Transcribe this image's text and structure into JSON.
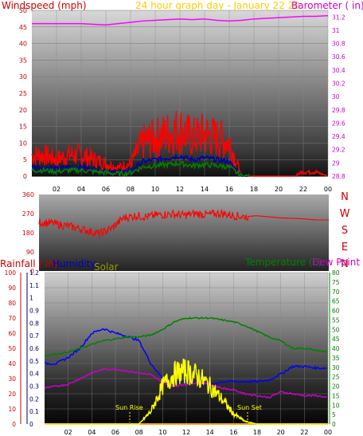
{
  "panel1": {
    "left_label": "Windspeed (mph)",
    "center_label": "24 hour graph day - January 22 20",
    "right_label": "Barometer ( in)",
    "left_ticks": [
      "0",
      "5",
      "10",
      "15",
      "20",
      "25",
      "30",
      "35",
      "40",
      "45",
      "50"
    ],
    "right_ticks": [
      "28.8",
      "29",
      "29.2",
      "29.4",
      "29.6",
      "29.8",
      "30",
      "30.2",
      "30.4",
      "30.6",
      "30.8",
      "31",
      "31.2"
    ],
    "colors": {
      "wind": "#ff0000",
      "gust2": "#0000aa",
      "gust3": "#008000",
      "barometer": "#ff00ff",
      "left_axis": "#cc0000",
      "right_axis": "#cc00cc",
      "title": "#ffcc00"
    }
  },
  "panel2": {
    "left_ticks": [
      "0",
      "90",
      "180",
      "270",
      "360"
    ],
    "compass": [
      "N",
      "W",
      "S",
      "E",
      "N"
    ],
    "colors": {
      "direction": "#ff0000",
      "compass": "#cc0000"
    }
  },
  "panel3": {
    "labels": {
      "rainfall": "Rainfall (.in)",
      "humidity": "Humidity",
      "solar": "Solar",
      "temperature": "Temperature (F)",
      "dew_point": "Dew Point ("
    },
    "rain_ticks": [
      "0",
      "10",
      "20",
      "30",
      "40",
      "50",
      "60",
      "70",
      "80",
      "90",
      "100"
    ],
    "inner_ticks": [
      "0",
      "0.1",
      "0.2",
      "0.3",
      "0.4",
      "0.5",
      "0.6",
      "0.7",
      "0.8",
      "0.9",
      "1",
      "1.1",
      "1.2"
    ],
    "temp_ticks": [
      "0",
      "5",
      "10",
      "15",
      "20",
      "25",
      "30",
      "35",
      "40",
      "45",
      "50",
      "55",
      "60",
      "65",
      "70",
      "75",
      "80"
    ],
    "sun_rise": "Sun Rise",
    "sun_set": "Sun Set",
    "colors": {
      "humidity": "#0000ff",
      "solar": "#ffff00",
      "temperature": "#008000",
      "dew_point": "#cc00cc",
      "rainfall": "#cc0000",
      "rain_axis": "#cc0000",
      "humidity_axis": "#0000cc",
      "temp_axis": "#008000",
      "solar_label": "#999900"
    }
  },
  "x_ticks": [
    "02",
    "04",
    "06",
    "08",
    "10",
    "12",
    "14",
    "16",
    "18",
    "20",
    "22",
    "00"
  ],
  "chart_data": [
    {
      "type": "line",
      "xlabel": "",
      "x_hours": [
        0,
        1,
        2,
        3,
        4,
        5,
        6,
        7,
        8,
        9,
        10,
        11,
        12,
        13,
        14,
        15,
        16,
        17,
        18,
        19,
        20,
        21,
        22,
        23,
        24
      ],
      "ylabel_left": "Windspeed (mph)",
      "ylabel_right": "Barometer ( in)",
      "ylim_left": [
        0,
        50
      ],
      "ylim_right": [
        28.8,
        31.3
      ],
      "series": [
        {
          "name": "Windspeed (mph)",
          "axis": "left",
          "values": [
            5,
            5,
            4,
            5,
            5,
            4,
            3,
            2,
            3,
            8,
            9,
            10,
            11,
            9,
            10,
            9,
            8,
            0,
            0,
            0,
            0,
            0,
            1,
            1,
            0
          ]
        },
        {
          "name": "Barometer ( in)",
          "axis": "right",
          "values": [
            31.1,
            31.1,
            31.1,
            31.1,
            31.1,
            31.09,
            31.08,
            31.1,
            31.12,
            31.14,
            31.15,
            31.16,
            31.17,
            31.16,
            31.17,
            31.15,
            31.14,
            31.15,
            31.17,
            31.18,
            31.19,
            31.2,
            31.21,
            31.21,
            31.22
          ]
        }
      ]
    },
    {
      "type": "line",
      "xlabel": "",
      "x_hours": [
        0,
        1,
        2,
        3,
        4,
        5,
        6,
        7,
        8,
        9,
        10,
        11,
        12,
        13,
        14,
        15,
        16,
        17,
        18,
        19,
        20,
        21,
        22,
        23,
        24
      ],
      "ylim": [
        0,
        360
      ],
      "series": [
        {
          "name": "Wind direction",
          "values": [
            230,
            225,
            215,
            205,
            190,
            175,
            200,
            250,
            260,
            255,
            265,
            268,
            262,
            270,
            265,
            272,
            262,
            255,
            260,
            255,
            250,
            248,
            245,
            240,
            240
          ]
        }
      ]
    },
    {
      "type": "line",
      "xlabel": "",
      "x_hours": [
        0,
        1,
        2,
        3,
        4,
        5,
        6,
        7,
        8,
        9,
        10,
        11,
        12,
        13,
        14,
        15,
        16,
        17,
        18,
        19,
        20,
        21,
        22,
        23,
        24
      ],
      "ylim_humidity": [
        0,
        100
      ],
      "ylim_temperature": [
        0,
        80
      ],
      "ylim_solar": [
        0,
        1.2
      ],
      "series": [
        {
          "name": "Humidity",
          "axis": "humidity",
          "values": [
            40,
            40,
            44,
            50,
            60,
            63,
            60,
            58,
            55,
            40,
            30,
            28,
            28,
            27,
            26,
            28,
            28,
            28,
            28,
            29,
            33,
            38,
            38,
            37,
            37
          ]
        },
        {
          "name": "Temperature (F)",
          "axis": "temperature",
          "values": [
            36,
            37,
            38,
            40,
            42,
            44,
            45,
            46,
            46,
            47,
            50,
            54,
            56,
            56,
            56,
            55,
            54,
            52,
            49,
            46,
            44,
            40,
            40,
            39,
            38
          ]
        },
        {
          "name": "Dew Point (",
          "axis": "temperature",
          "values": [
            19,
            20,
            21,
            24,
            27,
            29,
            29,
            28,
            27,
            26,
            22,
            20,
            21,
            22,
            21,
            19,
            18,
            16,
            15,
            14,
            17,
            16,
            15,
            15,
            14
          ]
        },
        {
          "name": "Solar",
          "axis": "solar",
          "values": [
            0,
            0,
            0,
            0,
            0,
            0,
            0,
            0,
            0,
            0.1,
            0.3,
            0.4,
            0.42,
            0.38,
            0.3,
            0.2,
            0.08,
            0.02,
            0,
            0,
            0,
            0,
            0,
            0,
            0
          ]
        }
      ]
    }
  ]
}
